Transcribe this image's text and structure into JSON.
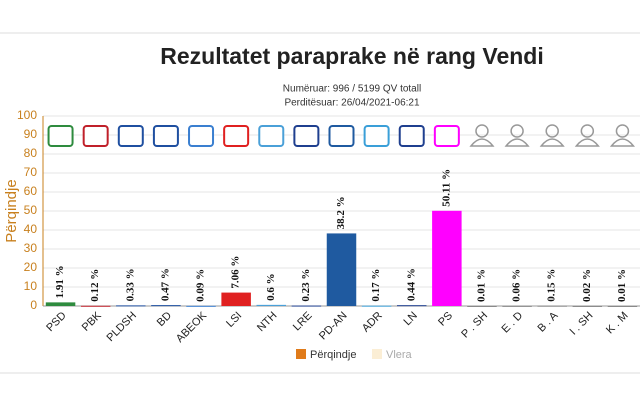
{
  "chart_data": {
    "type": "bar",
    "title": "Rezultatet paraprake në rang Vendi",
    "subtitle": [
      "Numëruar: 996 / 5199 QV totall",
      "Perditësuar: 26/04/2021-06:21"
    ],
    "y_label": "Përqindje",
    "categories": [
      "PSD",
      "PBK",
      "PLDSH",
      "BD",
      "ABEOK",
      "LSI",
      "NTH",
      "LRE",
      "PD-AN",
      "ADR",
      "LN",
      "PS",
      "P . SH",
      "E . D",
      "B . A",
      "I . SH",
      "K . M"
    ],
    "values": [
      1.91,
      0.12,
      0.33,
      0.47,
      0.09,
      7.06,
      0.6,
      0.23,
      38.2,
      0.17,
      0.44,
      50.11,
      0.01,
      0.06,
      0.15,
      0.02,
      0.01
    ],
    "value_labels": [
      "1.91 %",
      "0.12 %",
      "0.33 %",
      "0.47 %",
      "0.09 %",
      "7.06 %",
      "0.6 %",
      "0.23 %",
      "38.2 %",
      "0.17 %",
      "0.44 %",
      "50.11 %",
      "0.01 %",
      "0.06 %",
      "0.15 %",
      "0.02 %",
      "0.01 %"
    ],
    "colors": [
      "#2e8b3e",
      "#c0202a",
      "#1f4fa0",
      "#1f4fa0",
      "#3a7fd0",
      "#e02020",
      "#4aa0d8",
      "#1f3f8f",
      "#1f5aa0",
      "#3a9fd8",
      "#1f3f8f",
      "#ff00ff",
      "#888888",
      "#888888",
      "#888888",
      "#888888",
      "#888888"
    ],
    "ylim": [
      0,
      100
    ],
    "yticks": [
      0,
      10,
      20,
      30,
      40,
      50,
      60,
      70,
      80,
      90,
      100
    ],
    "grid": true,
    "legend": [
      {
        "name": "Përqindje",
        "color": "#e07b1a"
      },
      {
        "name": "Vlera",
        "color": "#fbeed5"
      }
    ]
  }
}
